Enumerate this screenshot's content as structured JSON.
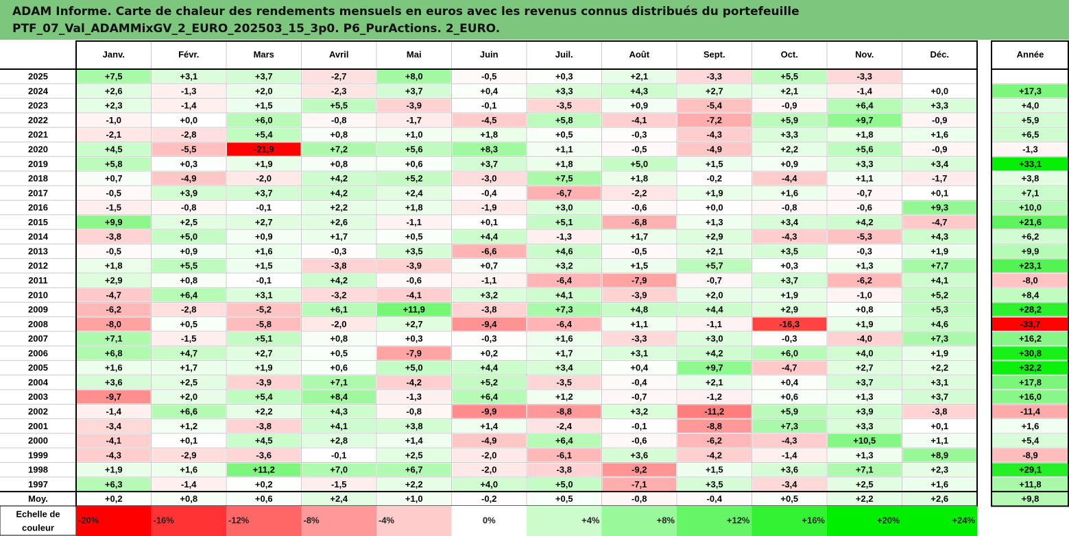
{
  "title": {
    "line1": "ADAM Informe. Carte de chaleur des rendements mensuels en euros avec les revenus connus distribués du portefeuille",
    "line2": "PTF_07_Val_ADAMMixGV_2_EURO_202503_15_3p0. P6_PurActions. 2_EURO."
  },
  "chart_data": {
    "type": "heatmap",
    "months": [
      "Janv.",
      "Févr.",
      "Mars",
      "Avril",
      "Mai",
      "Juin",
      "Juil.",
      "Août",
      "Sept.",
      "Oct.",
      "Nov.",
      "Déc."
    ],
    "annual_header": "Année",
    "rows": [
      {
        "year": "2025",
        "values": [
          7.5,
          3.1,
          3.7,
          -2.7,
          8.0,
          -0.5,
          0.3,
          2.1,
          -3.3,
          5.5,
          -3.3,
          null
        ],
        "annual": null
      },
      {
        "year": "2024",
        "values": [
          2.6,
          -1.3,
          2.0,
          -2.3,
          3.7,
          0.4,
          3.3,
          4.3,
          2.7,
          2.1,
          -1.4,
          0.0
        ],
        "annual": 17.3
      },
      {
        "year": "2023",
        "values": [
          2.3,
          -1.4,
          1.5,
          5.5,
          -3.9,
          -0.1,
          -3.5,
          0.9,
          -5.4,
          -0.9,
          6.4,
          3.3
        ],
        "annual": 4.0
      },
      {
        "year": "2022",
        "values": [
          -1.0,
          0.0,
          6.0,
          -0.8,
          -1.7,
          -4.5,
          5.8,
          -4.1,
          -7.2,
          5.9,
          9.7,
          -0.9
        ],
        "annual": 5.9
      },
      {
        "year": "2021",
        "values": [
          -2.1,
          -2.8,
          5.4,
          0.8,
          1.0,
          1.8,
          0.5,
          -0.3,
          -4.3,
          3.3,
          1.8,
          1.6
        ],
        "annual": 6.5
      },
      {
        "year": "2020",
        "values": [
          4.5,
          -5.5,
          -21.9,
          7.2,
          5.6,
          8.3,
          1.1,
          -0.5,
          -4.9,
          2.2,
          5.6,
          -0.9
        ],
        "annual": -1.3
      },
      {
        "year": "2019",
        "values": [
          5.8,
          0.3,
          1.9,
          0.8,
          0.6,
          3.7,
          1.8,
          5.0,
          1.5,
          0.9,
          3.3,
          3.4
        ],
        "annual": 33.1
      },
      {
        "year": "2018",
        "values": [
          0.7,
          -4.9,
          -2.0,
          4.2,
          5.2,
          -3.0,
          7.5,
          1.8,
          -0.2,
          -4.4,
          1.1,
          -1.7
        ],
        "annual": 3.8
      },
      {
        "year": "2017",
        "values": [
          -0.5,
          3.9,
          3.7,
          4.2,
          2.4,
          -0.4,
          -6.7,
          -2.2,
          1.9,
          1.6,
          -0.7,
          0.1
        ],
        "annual": 7.1
      },
      {
        "year": "2016",
        "values": [
          -1.5,
          -0.8,
          -0.1,
          2.2,
          1.8,
          -1.9,
          3.0,
          -0.6,
          0.0,
          -0.8,
          -0.6,
          9.3
        ],
        "annual": 10.0
      },
      {
        "year": "2015",
        "values": [
          9.9,
          2.5,
          2.7,
          2.6,
          -1.1,
          0.1,
          5.1,
          -6.8,
          1.3,
          3.4,
          4.2,
          -4.7
        ],
        "annual": 21.6
      },
      {
        "year": "2014",
        "values": [
          -3.8,
          5.0,
          0.9,
          1.7,
          0.5,
          4.4,
          -1.3,
          1.7,
          2.9,
          -4.3,
          -5.3,
          4.3
        ],
        "annual": 6.2
      },
      {
        "year": "2013",
        "values": [
          -0.5,
          0.9,
          1.6,
          -0.3,
          3.5,
          -6.6,
          4.6,
          -0.5,
          2.1,
          3.5,
          -0.3,
          1.9
        ],
        "annual": 9.9
      },
      {
        "year": "2012",
        "values": [
          1.8,
          5.5,
          1.5,
          -3.8,
          -3.9,
          0.7,
          3.2,
          1.5,
          5.7,
          0.3,
          1.3,
          7.7
        ],
        "annual": 23.1
      },
      {
        "year": "2011",
        "values": [
          2.9,
          0.8,
          -0.1,
          4.2,
          -0.6,
          -1.1,
          -6.4,
          -7.9,
          -0.7,
          3.7,
          -6.2,
          4.1
        ],
        "annual": -8.0
      },
      {
        "year": "2010",
        "values": [
          -4.7,
          6.4,
          3.1,
          -3.2,
          -4.1,
          3.2,
          4.1,
          -3.9,
          2.0,
          1.9,
          -1.0,
          5.2
        ],
        "annual": 8.4
      },
      {
        "year": "2009",
        "values": [
          -6.2,
          -2.8,
          -5.2,
          6.1,
          11.9,
          -3.8,
          7.3,
          4.8,
          4.4,
          2.9,
          0.8,
          5.3
        ],
        "annual": 28.2
      },
      {
        "year": "2008",
        "values": [
          -8.0,
          0.5,
          -5.8,
          -2.0,
          2.7,
          -9.4,
          -6.4,
          1.1,
          -1.1,
          -16.3,
          1.9,
          4.6
        ],
        "annual": -33.7
      },
      {
        "year": "2007",
        "values": [
          7.1,
          -1.5,
          5.1,
          0.8,
          0.3,
          -0.3,
          1.6,
          -3.3,
          3.0,
          -0.3,
          -4.0,
          7.3
        ],
        "annual": 16.2
      },
      {
        "year": "2006",
        "values": [
          6.8,
          4.7,
          2.7,
          0.5,
          -7.9,
          0.2,
          1.7,
          3.1,
          4.2,
          6.0,
          4.0,
          1.9
        ],
        "annual": 30.8
      },
      {
        "year": "2005",
        "values": [
          1.6,
          1.7,
          1.9,
          0.6,
          5.0,
          4.4,
          3.4,
          0.4,
          9.7,
          -4.7,
          2.7,
          2.2
        ],
        "annual": 32.2
      },
      {
        "year": "2004",
        "values": [
          3.6,
          2.5,
          -3.9,
          7.1,
          -4.2,
          5.2,
          -3.5,
          -0.4,
          2.1,
          0.4,
          3.7,
          3.1
        ],
        "annual": 17.8
      },
      {
        "year": "2003",
        "values": [
          -9.7,
          2.0,
          5.4,
          8.4,
          -1.3,
          6.4,
          1.2,
          -0.7,
          -1.2,
          0.6,
          1.3,
          3.7
        ],
        "annual": 16.0
      },
      {
        "year": "2002",
        "values": [
          -1.4,
          6.6,
          2.2,
          4.3,
          -0.8,
          -9.9,
          -8.8,
          3.2,
          -11.2,
          5.9,
          3.9,
          -3.8
        ],
        "annual": -11.4
      },
      {
        "year": "2001",
        "values": [
          -3.4,
          1.2,
          -3.8,
          4.1,
          3.8,
          1.4,
          -2.4,
          -0.1,
          -8.8,
          7.3,
          3.3,
          0.1
        ],
        "annual": 1.6
      },
      {
        "year": "2000",
        "values": [
          -4.1,
          0.1,
          4.5,
          2.8,
          1.4,
          -4.9,
          6.4,
          -0.6,
          -6.2,
          -4.3,
          10.5,
          1.1
        ],
        "annual": 5.4
      },
      {
        "year": "1999",
        "values": [
          -4.3,
          -2.9,
          -3.6,
          -0.1,
          2.5,
          -2.0,
          -6.1,
          3.6,
          -4.2,
          -1.4,
          1.3,
          8.9
        ],
        "annual": -8.9
      },
      {
        "year": "1998",
        "values": [
          1.9,
          1.6,
          11.2,
          7.0,
          6.7,
          -2.0,
          -3.8,
          -9.2,
          1.5,
          3.6,
          7.1,
          2.3
        ],
        "annual": 29.1
      },
      {
        "year": "1997",
        "values": [
          6.3,
          -1.4,
          0.2,
          -1.5,
          2.2,
          4.0,
          5.0,
          -7.1,
          3.5,
          -3.4,
          2.5,
          1.6
        ],
        "annual": 11.8
      }
    ],
    "average": {
      "label": "Moy.",
      "values": [
        0.2,
        0.8,
        0.6,
        2.4,
        1.0,
        -0.2,
        0.5,
        -0.8,
        -0.4,
        0.5,
        2.2,
        2.6
      ],
      "annual": 9.8
    },
    "scale": {
      "label_line1": "Echelle de",
      "label_line2": "couleur",
      "steps": [
        {
          "value": -20,
          "label": "-20%"
        },
        {
          "value": -16,
          "label": "-16%"
        },
        {
          "value": -12,
          "label": "-12%"
        },
        {
          "value": -8,
          "label": "-8%"
        },
        {
          "value": -4,
          "label": "-4%"
        },
        {
          "value": 0,
          "label": "0%"
        },
        {
          "value": 4,
          "label": "+4%"
        },
        {
          "value": 8,
          "label": "+8%"
        },
        {
          "value": 12,
          "label": "+12%"
        },
        {
          "value": 16,
          "label": "+16%"
        },
        {
          "value": 20,
          "label": "+20%"
        },
        {
          "value": 24,
          "label": "+24%"
        }
      ]
    },
    "colors": {
      "negative": "#ff0000",
      "positive": "#00ee00",
      "neutral": "#ffffff",
      "title_bar": "#7dc67e",
      "grid": "#c8c8c8"
    }
  }
}
